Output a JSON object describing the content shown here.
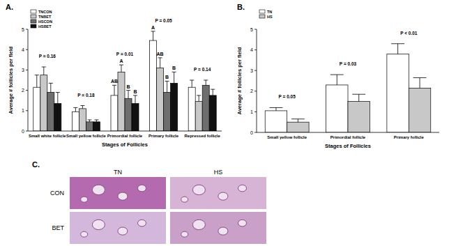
{
  "chart_data": [
    {
      "type": "bar",
      "title": "A.",
      "x_label": "Stages of Follicles",
      "y_label": "Average # follicles per field",
      "categories": [
        "Small white follicle",
        "Small yellow follicle",
        "Primordial follicle",
        "Primary follicle",
        "Repressed follicle"
      ],
      "series": [
        {
          "name": "TNCON",
          "color": "#ffffff",
          "values": [
            2.15,
            0.95,
            1.75,
            4.45,
            2.15
          ],
          "errors": [
            0.6,
            0.2,
            0.5,
            0.45,
            0.35
          ]
        },
        {
          "name": "TNBET",
          "color": "#c8c8c8",
          "values": [
            2.75,
            1.1,
            2.9,
            3.1,
            1.45
          ],
          "errors": [
            0.4,
            0.15,
            0.35,
            0.5,
            0.3
          ]
        },
        {
          "name": "HSCON",
          "color": "#6e6e6e",
          "values": [
            1.9,
            0.45,
            1.6,
            1.9,
            2.25
          ],
          "errors": [
            0.45,
            0.1,
            0.4,
            0.55,
            0.25
          ]
        },
        {
          "name": "HSBET",
          "color": "#111111",
          "values": [
            1.35,
            0.45,
            1.35,
            2.35,
            1.75
          ],
          "errors": [
            0.55,
            0.1,
            0.4,
            0.55,
            0.3
          ]
        }
      ],
      "ylim": [
        0,
        5
      ],
      "yticks": [
        0,
        1,
        2,
        3,
        4,
        5
      ],
      "grid": false,
      "legend": "upper left",
      "annotations": [
        {
          "text": "P = 0.16",
          "category": 0
        },
        {
          "text": "P = 0.18",
          "category": 1
        },
        {
          "text": "P = 0.01",
          "category": 2
        },
        {
          "text": "P = 0.05",
          "category": 3
        },
        {
          "text": "P = 0.14",
          "category": 4
        },
        {
          "text": "AB",
          "category": 2,
          "series": 0
        },
        {
          "text": "A",
          "category": 2,
          "series": 1
        },
        {
          "text": "B",
          "category": 2,
          "series": 2
        },
        {
          "text": "B",
          "category": 2,
          "series": 3
        },
        {
          "text": "A",
          "category": 3,
          "series": 0
        },
        {
          "text": "AB",
          "category": 3,
          "series": 1
        },
        {
          "text": "B",
          "category": 3,
          "series": 2
        },
        {
          "text": "B",
          "category": 3,
          "series": 3
        }
      ]
    },
    {
      "type": "bar",
      "title": "B.",
      "x_label": "Stages of Follicles",
      "y_label": "Average # follicles per field",
      "categories": [
        "Small yellow follicle",
        "Primordial follicle",
        "Primary follicle"
      ],
      "series": [
        {
          "name": "TN",
          "color": "#ffffff",
          "values": [
            1.05,
            2.3,
            3.8
          ],
          "errors": [
            0.15,
            0.5,
            0.5
          ]
        },
        {
          "name": "HS",
          "color": "#c8c8c8",
          "values": [
            0.5,
            1.5,
            2.15
          ],
          "errors": [
            0.15,
            0.35,
            0.5
          ]
        }
      ],
      "ylim": [
        0,
        5
      ],
      "yticks": [
        0,
        1,
        2,
        3,
        4,
        5
      ],
      "grid": false,
      "legend": "upper left",
      "annotations": [
        {
          "text": "P = 0.05",
          "category": 0
        },
        {
          "text": "P = 0.03",
          "category": 1
        },
        {
          "text": "P < 0.01",
          "category": 2
        }
      ]
    }
  ],
  "panel_c": {
    "label": "C.",
    "columns": [
      "TN",
      "HS"
    ],
    "rows": [
      "CON",
      "BET"
    ]
  }
}
